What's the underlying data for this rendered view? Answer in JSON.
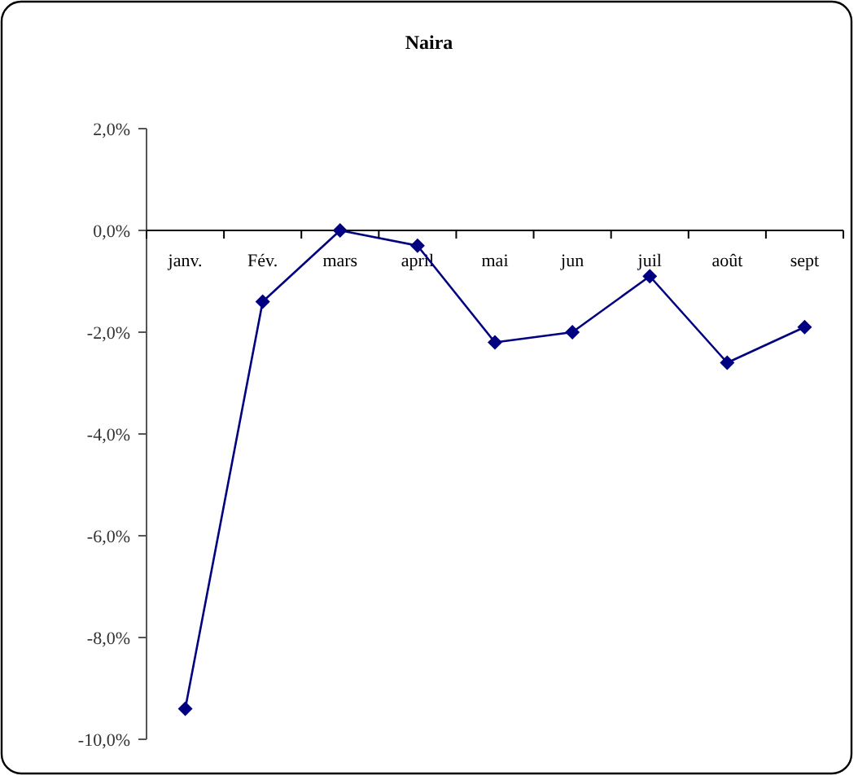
{
  "chart_data": {
    "type": "line",
    "title": "Naira",
    "categories": [
      "janv.",
      "Fév.",
      "mars",
      "april",
      "mai",
      "jun",
      "juil",
      "août",
      "sept"
    ],
    "series": [
      {
        "color": "#000080",
        "values": [
          -9.4,
          -1.4,
          0.0,
          -0.3,
          -2.2,
          -2.0,
          -0.9,
          -2.6,
          -1.9
        ]
      }
    ],
    "ylim": [
      -10,
      2
    ],
    "yticks": [
      {
        "value": 2,
        "label": "2,0%"
      },
      {
        "value": 0,
        "label": "0,0%"
      },
      {
        "value": -2,
        "label": "-2,0%"
      },
      {
        "value": -4,
        "label": "-4,0%"
      },
      {
        "value": -6,
        "label": "-6,0%"
      },
      {
        "value": -8,
        "label": "-8,0%"
      },
      {
        "value": -10,
        "label": "-10,0%"
      }
    ],
    "marker": "diamond",
    "line_style": "solid"
  }
}
